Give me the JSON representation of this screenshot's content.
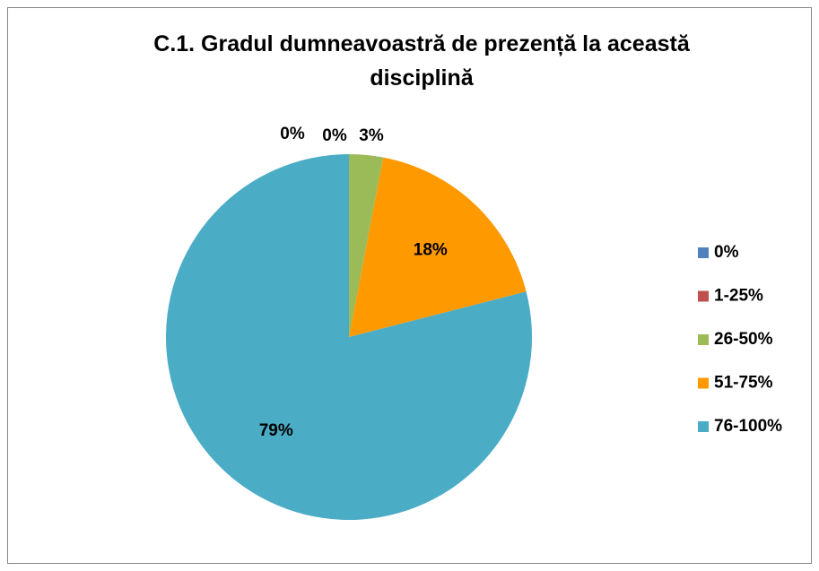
{
  "chart_data": {
    "type": "pie",
    "title": "C.1. Gradul dumneavoastră de prezență la această disciplină",
    "categories": [
      "0%",
      "1-25%",
      "26-50%",
      "51-75%",
      "76-100%"
    ],
    "values": [
      0,
      0,
      3,
      18,
      79
    ],
    "value_labels": [
      "0%",
      "0%",
      "3%",
      "18%",
      "79%"
    ],
    "colors": [
      "#4f81bd",
      "#c0504d",
      "#9bbb59",
      "#ff9900",
      "#4bacc6"
    ],
    "legend": "right"
  }
}
